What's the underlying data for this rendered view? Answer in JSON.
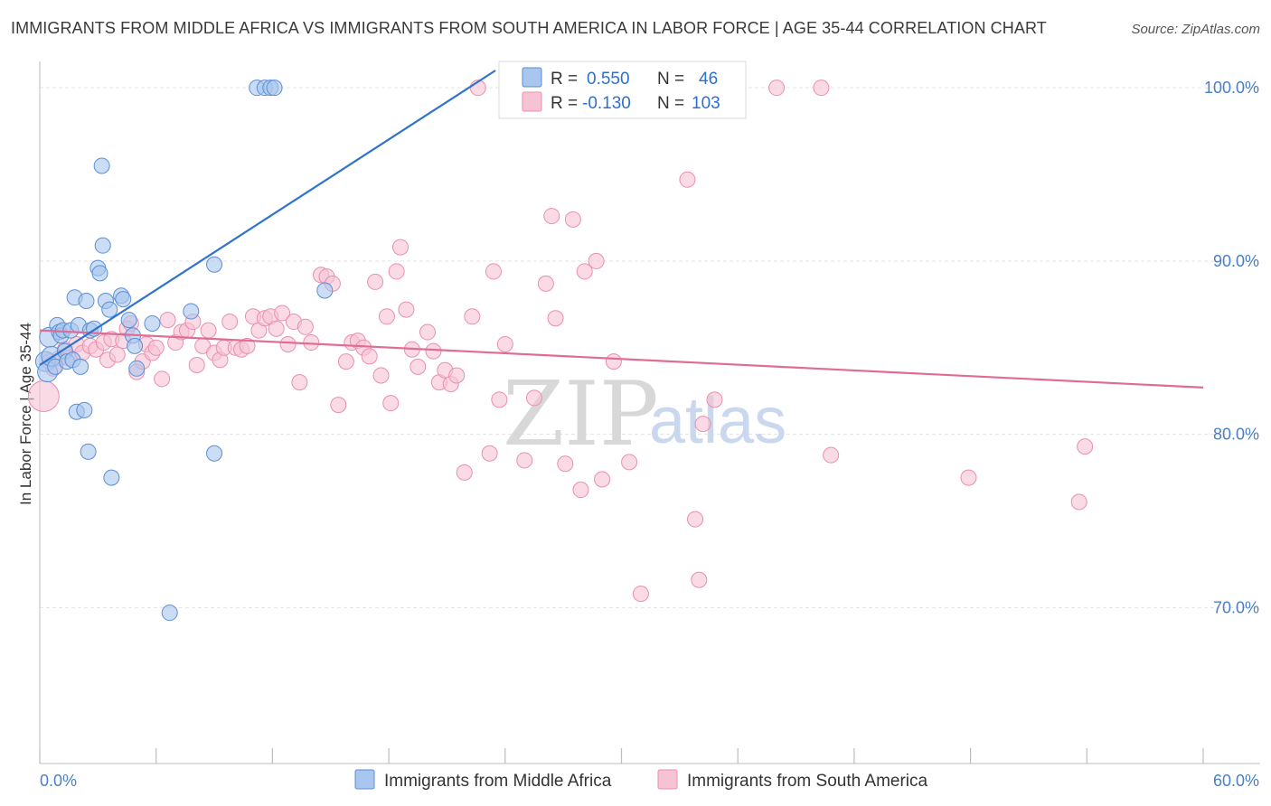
{
  "header": {
    "title": "IMMIGRANTS FROM MIDDLE AFRICA VS IMMIGRANTS FROM SOUTH AMERICA IN LABOR FORCE | AGE 35-44 CORRELATION CHART",
    "source": "Source: ZipAtlas.com"
  },
  "watermark": {
    "zip": "ZIP",
    "atlas": "atlas"
  },
  "legend_box": {
    "rows": [
      {
        "r_label": "R =",
        "r_value": "0.550",
        "n_label": "N =",
        "n_value": "46"
      },
      {
        "r_label": "R =",
        "r_value": "-0.130",
        "n_label": "N =",
        "n_value": "103"
      }
    ]
  },
  "bottom_legend": {
    "items": [
      "Immigrants from Middle Africa",
      "Immigrants from South America"
    ]
  },
  "colors": {
    "blue_fill": "#a9c6ee",
    "blue_stroke": "#5b8fd6",
    "blue_line": "#2f73cf",
    "pink_fill": "#f6c3d4",
    "pink_stroke": "#e98fad",
    "pink_line": "#e06b97",
    "tick_text": "#4a7fc6",
    "grid": "#e3e3e3"
  },
  "chart_data": {
    "type": "scatter",
    "title": "IMMIGRANTS FROM MIDDLE AFRICA VS IMMIGRANTS FROM SOUTH AMERICA IN LABOR FORCE | AGE 35-44 CORRELATION CHART",
    "xlabel": "",
    "ylabel": "In Labor Force | Age 35-44",
    "xlim": [
      0,
      60
    ],
    "ylim": [
      61,
      101
    ],
    "x_tick_labels": [
      {
        "value": 0,
        "label": "0.0%"
      },
      {
        "value": 60,
        "label": "60.0%"
      }
    ],
    "y_tick_labels": [
      {
        "value": 100,
        "label": "100.0%"
      },
      {
        "value": 90,
        "label": "90.0%"
      },
      {
        "value": 80,
        "label": "80.0%"
      },
      {
        "value": 70,
        "label": "70.0%"
      }
    ],
    "grid": true,
    "legend_position": "top-center",
    "series": [
      {
        "name": "Immigrants from Middle Africa",
        "color": "#a9c6ee",
        "r": 0.55,
        "n": 46,
        "trend": {
          "x": [
            0,
            23.5
          ],
          "y": [
            84.0,
            101.0
          ]
        },
        "points": [
          [
            0.3,
            84.2
          ],
          [
            0.4,
            83.6
          ],
          [
            0.5,
            85.6
          ],
          [
            0.6,
            84.5
          ],
          [
            0.8,
            83.9
          ],
          [
            0.9,
            86.3
          ],
          [
            1.0,
            85.9
          ],
          [
            1.1,
            85.7
          ],
          [
            1.2,
            86.0
          ],
          [
            1.3,
            84.8
          ],
          [
            1.4,
            84.2
          ],
          [
            1.6,
            86.0
          ],
          [
            1.7,
            84.3
          ],
          [
            1.8,
            87.9
          ],
          [
            1.9,
            81.3
          ],
          [
            2.0,
            86.3
          ],
          [
            2.1,
            83.9
          ],
          [
            2.3,
            81.4
          ],
          [
            2.4,
            87.7
          ],
          [
            2.5,
            79.0
          ],
          [
            2.6,
            86.0
          ],
          [
            2.8,
            86.1
          ],
          [
            3.0,
            89.6
          ],
          [
            3.1,
            89.3
          ],
          [
            3.2,
            95.5
          ],
          [
            3.25,
            90.9
          ],
          [
            3.4,
            87.7
          ],
          [
            3.6,
            87.2
          ],
          [
            3.7,
            77.5
          ],
          [
            4.2,
            88.0
          ],
          [
            4.3,
            87.8
          ],
          [
            4.6,
            86.6
          ],
          [
            4.8,
            85.7
          ],
          [
            4.9,
            85.1
          ],
          [
            5.0,
            83.8
          ],
          [
            5.8,
            86.4
          ],
          [
            6.7,
            69.7
          ],
          [
            7.8,
            87.1
          ],
          [
            9.0,
            89.8
          ],
          [
            9.0,
            78.9
          ],
          [
            11.2,
            100.0
          ],
          [
            11.6,
            100.0
          ],
          [
            11.9,
            100.0
          ],
          [
            12.1,
            100.0
          ],
          [
            14.7,
            88.3
          ],
          [
            25.9,
            100.0
          ]
        ]
      },
      {
        "name": "Immigrants from South America",
        "color": "#f6c3d4",
        "r": -0.13,
        "n": 103,
        "trend": {
          "x": [
            0,
            60
          ],
          "y": [
            86.0,
            82.7
          ]
        },
        "points": [
          [
            0.2,
            82.2
          ],
          [
            0.5,
            84.2
          ],
          [
            0.7,
            83.8
          ],
          [
            1.0,
            84.4
          ],
          [
            1.3,
            84.9
          ],
          [
            1.5,
            84.4
          ],
          [
            1.9,
            85.2
          ],
          [
            2.2,
            84.7
          ],
          [
            2.6,
            85.1
          ],
          [
            2.9,
            84.9
          ],
          [
            3.3,
            85.3
          ],
          [
            3.5,
            84.3
          ],
          [
            3.7,
            85.5
          ],
          [
            4.0,
            84.6
          ],
          [
            4.3,
            85.4
          ],
          [
            4.5,
            86.1
          ],
          [
            4.7,
            86.4
          ],
          [
            5.0,
            83.6
          ],
          [
            5.3,
            84.2
          ],
          [
            5.5,
            85.2
          ],
          [
            5.8,
            84.7
          ],
          [
            6.0,
            85.0
          ],
          [
            6.3,
            83.2
          ],
          [
            6.6,
            86.6
          ],
          [
            7.0,
            85.3
          ],
          [
            7.3,
            85.9
          ],
          [
            7.6,
            86.0
          ],
          [
            7.9,
            86.5
          ],
          [
            8.1,
            84.0
          ],
          [
            8.4,
            85.1
          ],
          [
            8.7,
            86.0
          ],
          [
            9.0,
            84.7
          ],
          [
            9.3,
            84.3
          ],
          [
            9.5,
            85.0
          ],
          [
            9.8,
            86.5
          ],
          [
            10.1,
            85.0
          ],
          [
            10.4,
            84.9
          ],
          [
            10.7,
            85.1
          ],
          [
            11.0,
            86.8
          ],
          [
            11.3,
            86.0
          ],
          [
            11.6,
            86.7
          ],
          [
            11.9,
            86.8
          ],
          [
            12.2,
            86.1
          ],
          [
            12.5,
            87.0
          ],
          [
            12.8,
            85.2
          ],
          [
            13.1,
            86.5
          ],
          [
            13.4,
            83.0
          ],
          [
            13.7,
            86.2
          ],
          [
            14.0,
            85.3
          ],
          [
            14.5,
            89.2
          ],
          [
            14.8,
            89.1
          ],
          [
            15.1,
            88.7
          ],
          [
            15.4,
            81.7
          ],
          [
            15.8,
            84.2
          ],
          [
            16.1,
            85.3
          ],
          [
            16.4,
            85.4
          ],
          [
            16.7,
            85.0
          ],
          [
            17.0,
            84.5
          ],
          [
            17.3,
            88.8
          ],
          [
            17.6,
            83.4
          ],
          [
            17.9,
            86.8
          ],
          [
            18.1,
            81.8
          ],
          [
            18.4,
            89.4
          ],
          [
            18.6,
            90.8
          ],
          [
            18.9,
            87.2
          ],
          [
            19.2,
            84.9
          ],
          [
            19.5,
            83.9
          ],
          [
            20.0,
            85.9
          ],
          [
            20.3,
            84.8
          ],
          [
            20.6,
            83.0
          ],
          [
            20.9,
            83.7
          ],
          [
            21.2,
            82.9
          ],
          [
            21.5,
            83.4
          ],
          [
            21.9,
            77.8
          ],
          [
            22.3,
            86.8
          ],
          [
            22.6,
            100.0
          ],
          [
            23.2,
            78.9
          ],
          [
            23.4,
            89.4
          ],
          [
            23.7,
            82.0
          ],
          [
            24.0,
            85.2
          ],
          [
            25.0,
            78.5
          ],
          [
            25.5,
            82.1
          ],
          [
            26.1,
            88.7
          ],
          [
            26.4,
            92.6
          ],
          [
            26.6,
            86.7
          ],
          [
            27.1,
            78.3
          ],
          [
            27.5,
            92.4
          ],
          [
            27.9,
            76.8
          ],
          [
            28.1,
            89.4
          ],
          [
            28.7,
            90.0
          ],
          [
            29.0,
            77.4
          ],
          [
            29.6,
            84.2
          ],
          [
            30.4,
            78.4
          ],
          [
            31.0,
            70.8
          ],
          [
            33.4,
            94.7
          ],
          [
            33.8,
            75.1
          ],
          [
            34.0,
            71.6
          ],
          [
            34.2,
            80.6
          ],
          [
            34.8,
            82.0
          ],
          [
            38.0,
            100.0
          ],
          [
            40.3,
            100.0
          ],
          [
            40.8,
            78.8
          ],
          [
            47.9,
            77.5
          ],
          [
            53.6,
            76.1
          ],
          [
            53.9,
            79.3
          ]
        ]
      }
    ]
  }
}
